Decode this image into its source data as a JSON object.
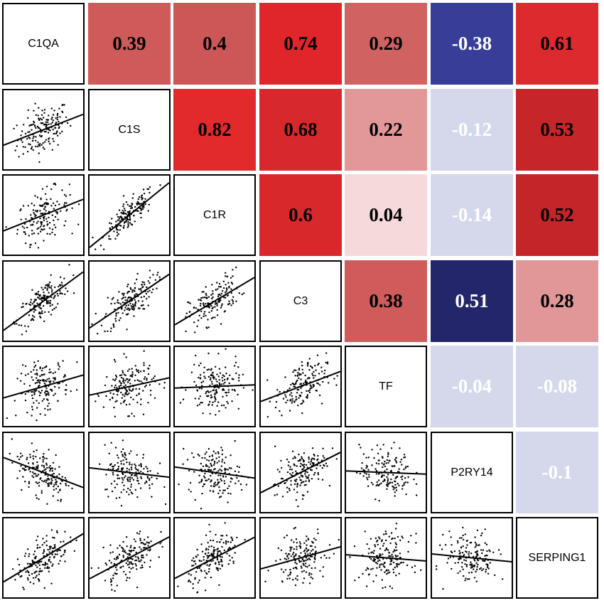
{
  "chart_data": {
    "type": "scatter_correlation_matrix",
    "variables": [
      "C1QA",
      "C1S",
      "C1R",
      "C3",
      "TF",
      "P2RY14",
      "SERPING1"
    ],
    "correlations": [
      [
        null,
        0.39,
        0.4,
        0.74,
        0.29,
        -0.38,
        0.61
      ],
      [
        0.39,
        null,
        0.82,
        0.68,
        0.22,
        -0.12,
        0.53
      ],
      [
        0.4,
        0.82,
        null,
        0.6,
        0.04,
        -0.14,
        0.52
      ],
      [
        0.74,
        0.68,
        0.6,
        null,
        0.38,
        0.51,
        0.28
      ],
      [
        0.29,
        0.22,
        0.04,
        0.38,
        null,
        -0.04,
        -0.08
      ],
      [
        -0.38,
        -0.12,
        -0.14,
        0.51,
        -0.04,
        null,
        -0.1
      ],
      [
        0.61,
        0.53,
        0.52,
        0.28,
        -0.08,
        -0.1,
        null
      ]
    ],
    "correlation_labels": [
      [
        null,
        "0.39",
        "0.4",
        "0.74",
        "0.29",
        "-0.38",
        "0.61"
      ],
      [
        null,
        null,
        "0.82",
        "0.68",
        "0.22",
        "-0.12",
        "0.53"
      ],
      [
        null,
        null,
        null,
        "0.6",
        "0.04",
        "-0.14",
        "0.52"
      ],
      [
        null,
        null,
        null,
        null,
        "0.38",
        "0.51",
        "0.28"
      ],
      [
        null,
        null,
        null,
        null,
        null,
        "-0.04",
        "-0.08"
      ],
      [
        null,
        null,
        null,
        null,
        null,
        null,
        "-0.1"
      ]
    ],
    "upper_cell_colors": [
      [
        null,
        "#cf5a5a",
        "#cd5757",
        "#e0262b",
        "#d16262",
        "#383d97",
        "#dd2a2e"
      ],
      [
        null,
        null,
        "#e22a2d",
        "#d7292d",
        "#e29898",
        "#d5d8ea",
        "#c62629"
      ],
      [
        null,
        null,
        null,
        "#d8282c",
        "#f6d9da",
        "#d5d8ea",
        "#c42528"
      ],
      [
        null,
        null,
        null,
        null,
        "#cf5b5b",
        "#23266a",
        "#e19797"
      ],
      [
        null,
        null,
        null,
        null,
        null,
        "#d5d8ea",
        "#d5d8ea"
      ],
      [
        null,
        null,
        null,
        null,
        null,
        null,
        "#d5d8ea"
      ]
    ],
    "upper_text_colors": [
      [
        null,
        "#000000",
        "#000000",
        "#000000",
        "#000000",
        "#ffffff",
        "#000000"
      ],
      [
        null,
        null,
        "#000000",
        "#000000",
        "#000000",
        "#ffffff",
        "#000000"
      ],
      [
        null,
        null,
        null,
        "#000000",
        "#000000",
        "#ffffff",
        "#000000"
      ],
      [
        null,
        null,
        null,
        null,
        "#000000",
        "#ffffff",
        "#000000"
      ],
      [
        null,
        null,
        null,
        null,
        null,
        "#ffffff",
        "#ffffff"
      ],
      [
        null,
        null,
        null,
        null,
        null,
        null,
        "#ffffff"
      ]
    ],
    "lower_panels": "scatter with linear fit line",
    "grid": false
  }
}
